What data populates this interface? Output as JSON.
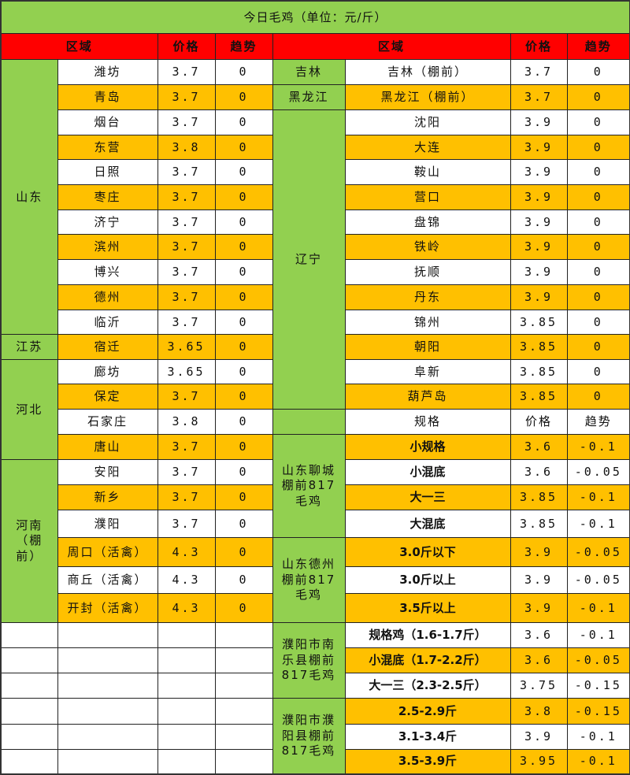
{
  "title": "今日毛鸡（单位：元/斤）",
  "colors": {
    "header_bg": "#ff0000",
    "region_bg": "#92d050",
    "alt_row_bg": "#ffc000",
    "row_bg": "#ffffff"
  },
  "headers": {
    "left": [
      "区域",
      "价格",
      "趋势"
    ],
    "right": [
      "区域",
      "价格",
      "趋势"
    ]
  },
  "left_groups": [
    {
      "region": "山东",
      "rows": [
        {
          "area": "潍坊",
          "price": "3.7",
          "trend": "0"
        },
        {
          "area": "青岛",
          "price": "3.7",
          "trend": "0"
        },
        {
          "area": "烟台",
          "price": "3.7",
          "trend": "0"
        },
        {
          "area": "东营",
          "price": "3.8",
          "trend": "0"
        },
        {
          "area": "日照",
          "price": "3.7",
          "trend": "0"
        },
        {
          "area": "枣庄",
          "price": "3.7",
          "trend": "0"
        },
        {
          "area": "济宁",
          "price": "3.7",
          "trend": "0"
        },
        {
          "area": "滨州",
          "price": "3.7",
          "trend": "0"
        },
        {
          "area": "博兴",
          "price": "3.7",
          "trend": "0"
        },
        {
          "area": "德州",
          "price": "3.7",
          "trend": "0"
        },
        {
          "area": "临沂",
          "price": "3.7",
          "trend": "0"
        }
      ]
    },
    {
      "region": "江苏",
      "rows": [
        {
          "area": "宿迁",
          "price": "3.65",
          "trend": "0"
        }
      ]
    },
    {
      "region": "河北",
      "rows": [
        {
          "area": "廊坊",
          "price": "3.65",
          "trend": "0"
        },
        {
          "area": "保定",
          "price": "3.7",
          "trend": "0"
        },
        {
          "area": "石家庄",
          "price": "3.8",
          "trend": "0"
        },
        {
          "area": "唐山",
          "price": "3.7",
          "trend": "0"
        }
      ]
    },
    {
      "region": "河南（棚前）",
      "rows": [
        {
          "area": "安阳",
          "price": "3.7",
          "trend": "0"
        },
        {
          "area": "新乡",
          "price": "3.7",
          "trend": "0"
        },
        {
          "area": "濮阳",
          "price": "3.7",
          "trend": "0"
        },
        {
          "area": "周口（活禽）",
          "price": "4.3",
          "trend": "0"
        },
        {
          "area": "商丘（活禽）",
          "price": "4.3",
          "trend": "0"
        },
        {
          "area": "开封（活禽）",
          "price": "4.3",
          "trend": "0"
        }
      ]
    }
  ],
  "right_groups": [
    {
      "region": "吉林",
      "rows": [
        {
          "area": "吉林（棚前）",
          "price": "3.7",
          "trend": "0"
        }
      ]
    },
    {
      "region": "黑龙江",
      "rows": [
        {
          "area": "黑龙江（棚前）",
          "price": "3.7",
          "trend": "0"
        }
      ]
    },
    {
      "region": "辽宁",
      "rows": [
        {
          "area": "沈阳",
          "price": "3.9",
          "trend": "0"
        },
        {
          "area": "大连",
          "price": "3.9",
          "trend": "0"
        },
        {
          "area": "鞍山",
          "price": "3.9",
          "trend": "0"
        },
        {
          "area": "营口",
          "price": "3.9",
          "trend": "0"
        },
        {
          "area": "盘锦",
          "price": "3.9",
          "trend": "0"
        },
        {
          "area": "铁岭",
          "price": "3.9",
          "trend": "0"
        },
        {
          "area": "抚顺",
          "price": "3.9",
          "trend": "0"
        },
        {
          "area": "丹东",
          "price": "3.9",
          "trend": "0"
        },
        {
          "area": "锦州",
          "price": "3.85",
          "trend": "0"
        },
        {
          "area": "朝阳",
          "price": "3.85",
          "trend": "0"
        },
        {
          "area": "阜新",
          "price": "3.85",
          "trend": "0"
        },
        {
          "area": "葫芦岛",
          "price": "3.85",
          "trend": "0"
        }
      ]
    },
    {
      "region": "",
      "rows": [
        {
          "area": "规格",
          "price": "价格",
          "trend": "趋势"
        }
      ]
    },
    {
      "region": "山东聊城棚前817毛鸡",
      "rows": [
        {
          "area": "小规格",
          "price": "3.6",
          "trend": "-0.1"
        },
        {
          "area": "小混底",
          "price": "3.6",
          "trend": "-0.05"
        },
        {
          "area": "大一三",
          "price": "3.85",
          "trend": "-0.1"
        },
        {
          "area": "大混底",
          "price": "3.85",
          "trend": "-0.1"
        }
      ]
    },
    {
      "region": "山东德州棚前817毛鸡",
      "rows": [
        {
          "area": "3.0斤以下",
          "price": "3.9",
          "trend": "-0.05"
        },
        {
          "area": "3.0斤以上",
          "price": "3.9",
          "trend": "-0.05"
        },
        {
          "area": "3.5斤以上",
          "price": "3.9",
          "trend": "-0.1"
        }
      ]
    },
    {
      "region": "濮阳市南乐县棚前817毛鸡",
      "rows": [
        {
          "area": "规格鸡（1.6-1.7斤）",
          "price": "3.6",
          "trend": "-0.1"
        },
        {
          "area": "小混底（1.7-2.2斤）",
          "price": "3.6",
          "trend": "-0.05"
        },
        {
          "area": "大一三（2.3-2.5斤）",
          "price": "3.75",
          "trend": "-0.15"
        }
      ]
    },
    {
      "region": "濮阳市濮阳县棚前817毛鸡",
      "rows": [
        {
          "area": "2.5-2.9斤",
          "price": "3.8",
          "trend": "-0.15"
        },
        {
          "area": "3.1-3.4斤",
          "price": "3.9",
          "trend": "-0.1"
        },
        {
          "area": "3.5-3.9斤",
          "price": "3.95",
          "trend": "-0.1"
        }
      ]
    }
  ]
}
